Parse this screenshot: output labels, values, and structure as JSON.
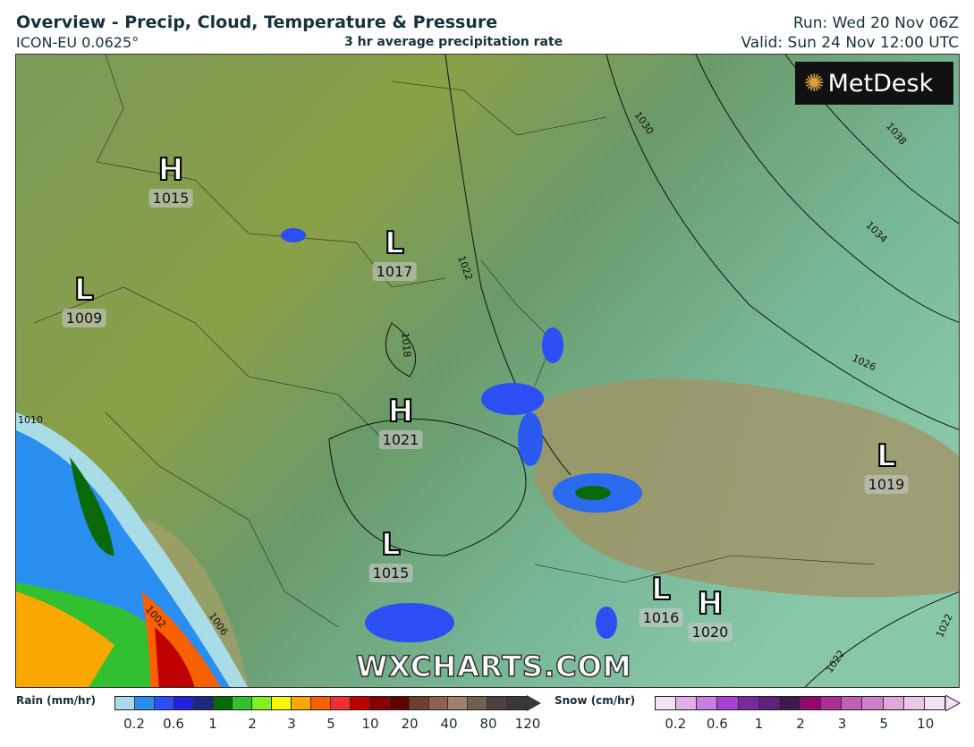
{
  "header": {
    "title": "Overview - Precip, Cloud, Temperature & Pressure",
    "model": "ICON-EU 0.0625°",
    "subtitle": "3 hr average precipitation rate",
    "run": "Run: Wed 20 Nov 06Z",
    "valid": "Valid: Sun 24 Nov 12:00 UTC"
  },
  "logo": "MetDesk",
  "watermark": "WXCHARTS.COM",
  "pressure_systems": [
    {
      "type": "H",
      "value": "1015"
    },
    {
      "type": "L",
      "value": "1017"
    },
    {
      "type": "L",
      "value": "1009"
    },
    {
      "type": "H",
      "value": "1021"
    },
    {
      "type": "L",
      "value": "1019"
    },
    {
      "type": "L",
      "value": "1015"
    },
    {
      "type": "L",
      "value": "1016"
    },
    {
      "type": "H",
      "value": "1020"
    }
  ],
  "isobar_labels": [
    "1030",
    "1038",
    "1034",
    "1022",
    "1018",
    "1026",
    "1010",
    "1002",
    "1006",
    "1022",
    "1022"
  ],
  "rain_legend": {
    "label": "Rain (mm/hr)",
    "ticks": [
      "0.2",
      "0.6",
      "1",
      "2",
      "3",
      "5",
      "10",
      "20",
      "40",
      "80",
      "120"
    ],
    "colors": [
      "#a8dce6",
      "#2a8ef0",
      "#2b4ef5",
      "#2020e0",
      "#1a2a80",
      "#0a6a0a",
      "#30c030",
      "#80f020",
      "#f8f800",
      "#f8a800",
      "#f86000",
      "#f03030",
      "#c00000",
      "#880000",
      "#600000",
      "#704030",
      "#906050",
      "#a08070",
      "#706050",
      "#504040",
      "#383838"
    ]
  },
  "snow_legend": {
    "label": "Snow (cm/hr)",
    "ticks": [
      "0.2",
      "0.6",
      "1",
      "2",
      "3",
      "5",
      "10"
    ],
    "colors": [
      "#f0e0f0",
      "#e0b0e8",
      "#c880e0",
      "#a840d8",
      "#7828a0",
      "#602080",
      "#401850",
      "#900870",
      "#a83098",
      "#c060b0",
      "#d080c8",
      "#e0a8d8",
      "#ecc8e8",
      "#f4e0f4"
    ]
  }
}
